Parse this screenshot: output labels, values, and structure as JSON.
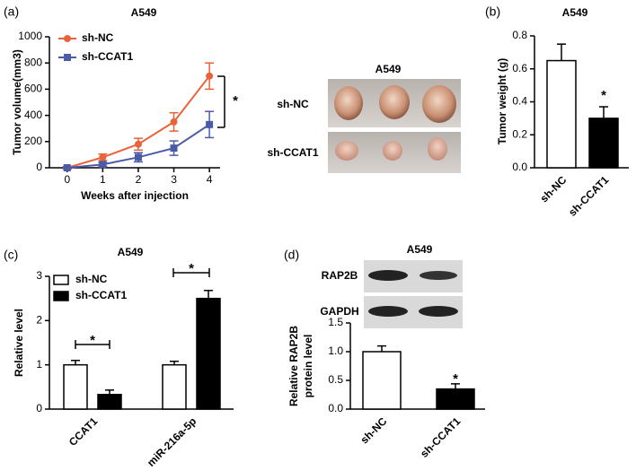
{
  "chart_data": [
    {
      "type": "line",
      "panel_label": "(a)",
      "title": "A549",
      "xlabel": "Weeks after injection",
      "ylabel": "Tumor volume(mm3)",
      "x": [
        0,
        1,
        2,
        3,
        4
      ],
      "xlim": [
        -0.5,
        4.3
      ],
      "xticks": [
        0,
        1,
        2,
        3,
        4
      ],
      "ylim": [
        0,
        1000
      ],
      "yticks": [
        0,
        200,
        400,
        600,
        800,
        1000
      ],
      "series": [
        {
          "name": "sh-NC",
          "color": "#e8623a",
          "marker": "circle",
          "values": [
            0,
            80,
            180,
            350,
            700
          ],
          "errors": [
            10,
            25,
            45,
            70,
            100
          ]
        },
        {
          "name": "sh-CCAT1",
          "color": "#4a5ba8",
          "marker": "square",
          "values": [
            0,
            25,
            80,
            150,
            330
          ],
          "errors": [
            5,
            15,
            35,
            55,
            100
          ]
        }
      ],
      "annotations": [
        "*"
      ]
    },
    {
      "type": "bar",
      "panel_label": "(b)",
      "title": "A549",
      "ylabel": "Tumor weight (g)",
      "categories": [
        "sh-NC",
        "sh-CCAT1"
      ],
      "values": [
        0.65,
        0.3
      ],
      "errors": [
        0.1,
        0.07
      ],
      "colors": [
        "#ffffff",
        "#000000"
      ],
      "ylim": [
        0,
        0.8
      ],
      "yticks": [
        {
          "value": 0,
          "label": "0.0"
        },
        0.2,
        0.4,
        0.6,
        0.8
      ],
      "annotations": [
        "*"
      ]
    },
    {
      "type": "bar",
      "panel_label": "(c)",
      "title": "A549",
      "ylabel": "Relative level",
      "categories": [
        "CCAT1",
        "miR-216a-5p"
      ],
      "series": [
        {
          "name": "sh-NC",
          "color": "#ffffff",
          "values": [
            1.0,
            1.0
          ],
          "errors": [
            0.1,
            0.08
          ]
        },
        {
          "name": "sh-CCAT1",
          "color": "#000000",
          "values": [
            0.33,
            2.5
          ],
          "errors": [
            0.1,
            0.18
          ]
        }
      ],
      "ylim": [
        0,
        3
      ],
      "yticks": [
        0,
        1,
        2,
        3
      ],
      "annotations": [
        "*",
        "*"
      ]
    },
    {
      "type": "bar",
      "panel_label": "(d)",
      "title": "A549",
      "blot_labels": [
        "RAP2B",
        "GAPDH"
      ],
      "ylabel": [
        "Relative RAP2B",
        "protein level"
      ],
      "categories": [
        "sh-NC",
        "sh-CCAT1"
      ],
      "values": [
        1.0,
        0.35
      ],
      "errors": [
        0.1,
        0.09
      ],
      "colors": [
        "#ffffff",
        "#000000"
      ],
      "ylim": [
        0,
        1.5
      ],
      "yticks": [
        {
          "value": 0,
          "label": "0.0"
        },
        0.5,
        {
          "value": 1,
          "label": "1.0"
        },
        1.5
      ],
      "annotations": [
        "*"
      ]
    }
  ],
  "photo": {
    "title": "A549",
    "rows": [
      "sh-NC",
      "sh-CCAT1"
    ]
  }
}
